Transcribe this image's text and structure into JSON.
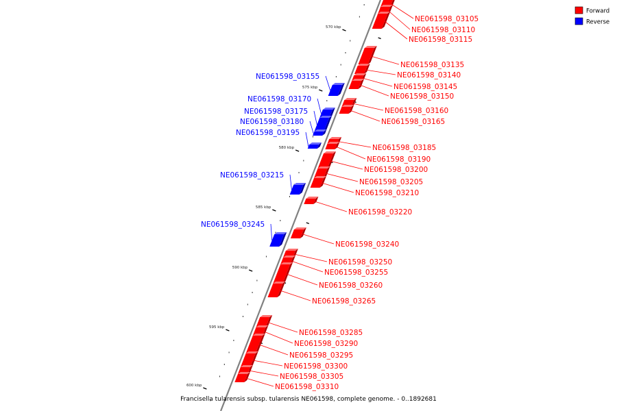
{
  "caption": "Francisella tularensis subsp. tularensis NE061598, complete genome. - 0..1892681",
  "legend": [
    {
      "label": "Forward",
      "color": "#ff0000"
    },
    {
      "label": "Reverse",
      "color": "#0000ff"
    }
  ],
  "colors": {
    "forward": "#ff0000",
    "forward_dark": "#b00000",
    "forward_light": "#ff7070",
    "reverse": "#0000ff",
    "reverse_dark": "#0000a0",
    "reverse_light": "#6a6aff",
    "backbone": "#808080"
  },
  "ticks": [
    {
      "label": "570 kbp"
    },
    {
      "label": "575 kbp"
    },
    {
      "label": "580 kbp"
    },
    {
      "label": "585 kbp"
    },
    {
      "label": "590 kbp"
    },
    {
      "label": "595 kbp"
    },
    {
      "label": "600 kbp"
    }
  ],
  "genes": [
    {
      "name": "NE061598_03105",
      "strand": "forward"
    },
    {
      "name": "NE061598_03110",
      "strand": "forward"
    },
    {
      "name": "NE061598_03115",
      "strand": "forward"
    },
    {
      "name": "NE061598_03135",
      "strand": "forward"
    },
    {
      "name": "NE061598_03140",
      "strand": "forward"
    },
    {
      "name": "NE061598_03145",
      "strand": "forward"
    },
    {
      "name": "NE061598_03150",
      "strand": "forward"
    },
    {
      "name": "NE061598_03155",
      "strand": "reverse"
    },
    {
      "name": "NE061598_03160",
      "strand": "forward"
    },
    {
      "name": "NE061598_03165",
      "strand": "forward"
    },
    {
      "name": "NE061598_03170",
      "strand": "reverse"
    },
    {
      "name": "NE061598_03175",
      "strand": "reverse"
    },
    {
      "name": "NE061598_03180",
      "strand": "reverse"
    },
    {
      "name": "NE061598_03185",
      "strand": "forward"
    },
    {
      "name": "NE061598_03190",
      "strand": "forward"
    },
    {
      "name": "NE061598_03195",
      "strand": "reverse"
    },
    {
      "name": "NE061598_03200",
      "strand": "forward"
    },
    {
      "name": "NE061598_03205",
      "strand": "forward"
    },
    {
      "name": "NE061598_03210",
      "strand": "forward"
    },
    {
      "name": "NE061598_03215",
      "strand": "reverse"
    },
    {
      "name": "NE061598_03220",
      "strand": "forward"
    },
    {
      "name": "NE061598_03240",
      "strand": "forward"
    },
    {
      "name": "NE061598_03245",
      "strand": "reverse"
    },
    {
      "name": "NE061598_03250",
      "strand": "forward"
    },
    {
      "name": "NE061598_03255",
      "strand": "forward"
    },
    {
      "name": "NE061598_03260",
      "strand": "forward"
    },
    {
      "name": "NE061598_03265",
      "strand": "forward"
    },
    {
      "name": "NE061598_03285",
      "strand": "forward"
    },
    {
      "name": "NE061598_03290",
      "strand": "forward"
    },
    {
      "name": "NE061598_03295",
      "strand": "forward"
    },
    {
      "name": "NE061598_03300",
      "strand": "forward"
    },
    {
      "name": "NE061598_03305",
      "strand": "forward"
    },
    {
      "name": "NE061598_03310",
      "strand": "forward"
    }
  ]
}
